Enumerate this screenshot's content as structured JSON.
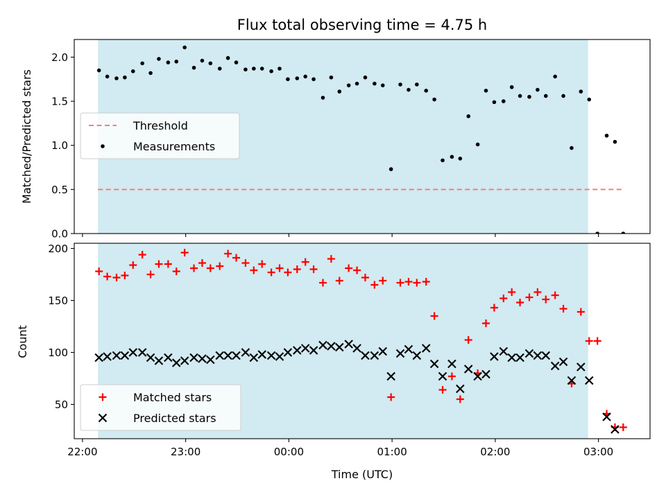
{
  "chart_data": [
    {
      "type": "scatter",
      "title": "Flux total observing time = 4.75 h",
      "xlabel": "",
      "ylabel": "Matched/Predicted stars",
      "ylim": [
        0,
        2.2
      ],
      "yticks": [
        0.0,
        0.5,
        1.0,
        1.5,
        2.0
      ],
      "ytick_labels": [
        "0.0",
        "0.5",
        "1.0",
        "1.5",
        "2.0"
      ],
      "xlim": [
        -0.08,
        5.5
      ],
      "x_unit": "hours after 22:00 UTC",
      "shaded_span": {
        "start": 0.15,
        "end": 4.9,
        "color": "#add8e6"
      },
      "legend_position": "center-left",
      "colors": {
        "threshold": "#f08080",
        "measurements": "#000000"
      },
      "series": [
        {
          "name": "Threshold",
          "kind": "dashed-line",
          "x": [
            0.15,
            5.25
          ],
          "y": [
            0.5,
            0.5
          ]
        },
        {
          "name": "Measurements",
          "kind": "points",
          "x": [
            0.16,
            0.24,
            0.33,
            0.41,
            0.49,
            0.58,
            0.66,
            0.74,
            0.83,
            0.91,
            0.99,
            1.08,
            1.16,
            1.24,
            1.33,
            1.41,
            1.49,
            1.58,
            1.66,
            1.74,
            1.83,
            1.91,
            1.99,
            2.08,
            2.16,
            2.24,
            2.33,
            2.41,
            2.49,
            2.58,
            2.66,
            2.74,
            2.83,
            2.91,
            2.99,
            3.08,
            3.16,
            3.24,
            3.33,
            3.41,
            3.49,
            3.58,
            3.66,
            3.74,
            3.83,
            3.91,
            3.99,
            4.08,
            4.16,
            4.24,
            4.33,
            4.41,
            4.49,
            4.58,
            4.66,
            4.74,
            4.83,
            4.91,
            4.99,
            5.08,
            5.16,
            5.24
          ],
          "y": [
            1.85,
            1.78,
            1.76,
            1.77,
            1.84,
            1.93,
            1.82,
            1.98,
            1.94,
            1.95,
            2.11,
            1.88,
            1.96,
            1.93,
            1.87,
            1.99,
            1.94,
            1.86,
            1.87,
            1.87,
            1.84,
            1.87,
            1.75,
            1.76,
            1.78,
            1.75,
            1.54,
            1.77,
            1.61,
            1.68,
            1.7,
            1.77,
            1.7,
            1.68,
            0.73,
            1.69,
            1.63,
            1.69,
            1.62,
            1.52,
            0.83,
            0.87,
            0.85,
            1.33,
            1.01,
            1.62,
            1.49,
            1.5,
            1.66,
            1.56,
            1.55,
            1.63,
            1.56,
            1.78,
            1.56,
            0.97,
            1.61,
            1.52,
            0.0,
            1.11,
            1.04,
            0.0
          ]
        }
      ]
    },
    {
      "type": "scatter",
      "title": "",
      "xlabel": "Time (UTC)",
      "ylabel": "Count",
      "ylim": [
        17,
        205
      ],
      "yticks": [
        50,
        100,
        150,
        200
      ],
      "ytick_labels": [
        "50",
        "100",
        "150",
        "200"
      ],
      "xlim": [
        -0.08,
        5.5
      ],
      "xticks": [
        0,
        1,
        2,
        3,
        4,
        5
      ],
      "xtick_labels": [
        "22:00",
        "23:00",
        "00:00",
        "01:00",
        "02:00",
        "03:00"
      ],
      "shaded_span": {
        "start": 0.15,
        "end": 4.9,
        "color": "#add8e6"
      },
      "legend_position": "lower-left",
      "colors": {
        "matched": "#ff0000",
        "predicted": "#000000"
      },
      "series": [
        {
          "name": "Matched stars",
          "marker": "plus",
          "x": [
            0.16,
            0.24,
            0.33,
            0.41,
            0.49,
            0.58,
            0.66,
            0.74,
            0.83,
            0.91,
            0.99,
            1.08,
            1.16,
            1.24,
            1.33,
            1.41,
            1.49,
            1.58,
            1.66,
            1.74,
            1.83,
            1.91,
            1.99,
            2.08,
            2.16,
            2.24,
            2.33,
            2.41,
            2.49,
            2.58,
            2.66,
            2.74,
            2.83,
            2.91,
            2.99,
            3.08,
            3.16,
            3.24,
            3.33,
            3.41,
            3.49,
            3.58,
            3.66,
            3.74,
            3.83,
            3.91,
            3.99,
            4.08,
            4.16,
            4.24,
            4.33,
            4.41,
            4.49,
            4.58,
            4.66,
            4.74,
            4.83,
            4.91,
            4.99,
            5.08,
            5.16,
            5.24
          ],
          "y": [
            178,
            173,
            172,
            174,
            184,
            194,
            175,
            185,
            185,
            178,
            196,
            181,
            186,
            181,
            183,
            195,
            191,
            186,
            179,
            185,
            177,
            181,
            177,
            180,
            187,
            180,
            167,
            190,
            169,
            181,
            179,
            172,
            165,
            169,
            57,
            167,
            168,
            167,
            168,
            135,
            64,
            77,
            55,
            112,
            80,
            128,
            143,
            152,
            158,
            148,
            153,
            158,
            151,
            155,
            142,
            70,
            139,
            111,
            111,
            41,
            28,
            28
          ]
        },
        {
          "name": "Predicted stars",
          "marker": "x",
          "x": [
            0.16,
            0.24,
            0.33,
            0.41,
            0.49,
            0.58,
            0.66,
            0.74,
            0.83,
            0.91,
            0.99,
            1.08,
            1.16,
            1.24,
            1.33,
            1.41,
            1.49,
            1.58,
            1.66,
            1.74,
            1.83,
            1.91,
            1.99,
            2.08,
            2.16,
            2.24,
            2.33,
            2.41,
            2.49,
            2.58,
            2.66,
            2.74,
            2.83,
            2.91,
            2.99,
            3.08,
            3.16,
            3.24,
            3.33,
            3.41,
            3.49,
            3.58,
            3.66,
            3.74,
            3.83,
            3.91,
            3.99,
            4.08,
            4.16,
            4.24,
            4.33,
            4.41,
            4.49,
            4.58,
            4.66,
            4.74,
            4.83,
            4.91,
            5.08,
            5.16
          ],
          "y": [
            95,
            96,
            97,
            97,
            100,
            100,
            95,
            92,
            95,
            90,
            92,
            95,
            94,
            93,
            97,
            97,
            97,
            100,
            95,
            98,
            97,
            96,
            100,
            102,
            104,
            102,
            107,
            106,
            105,
            108,
            104,
            97,
            97,
            101,
            77,
            99,
            103,
            97,
            104,
            89,
            77,
            89,
            65,
            84,
            77,
            79,
            96,
            101,
            95,
            95,
            99,
            97,
            97,
            87,
            91,
            73,
            86,
            73,
            38,
            26
          ]
        }
      ]
    }
  ]
}
